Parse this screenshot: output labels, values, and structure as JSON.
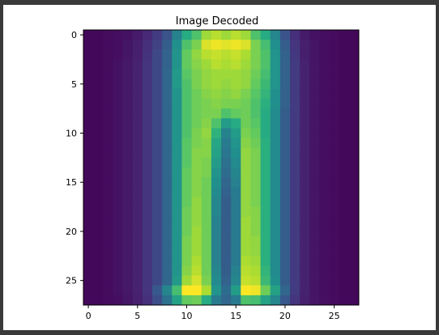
{
  "chart_data": {
    "type": "heatmap",
    "title": "Image Decoded",
    "xlabel": "",
    "ylabel": "",
    "rows": 28,
    "cols": 28,
    "colormap": "viridis",
    "vmin": 0,
    "vmax": 1,
    "xlim": [
      -0.5,
      27.5
    ],
    "ylim": [
      27.5,
      -0.5
    ],
    "xticks": [
      0,
      5,
      10,
      15,
      20,
      25
    ],
    "yticks": [
      0,
      5,
      10,
      15,
      20,
      25
    ],
    "grid": false,
    "values": [
      [
        0.02,
        0.02,
        0.03,
        0.04,
        0.05,
        0.08,
        0.12,
        0.18,
        0.26,
        0.44,
        0.62,
        0.72,
        0.86,
        0.9,
        0.86,
        0.9,
        0.86,
        0.72,
        0.62,
        0.46,
        0.26,
        0.14,
        0.08,
        0.05,
        0.04,
        0.03,
        0.02,
        0.02
      ],
      [
        0.02,
        0.02,
        0.03,
        0.04,
        0.06,
        0.09,
        0.14,
        0.2,
        0.3,
        0.5,
        0.72,
        0.8,
        0.95,
        0.98,
        0.96,
        0.98,
        0.95,
        0.8,
        0.7,
        0.5,
        0.3,
        0.16,
        0.09,
        0.06,
        0.04,
        0.03,
        0.02,
        0.02
      ],
      [
        0.02,
        0.02,
        0.03,
        0.04,
        0.06,
        0.09,
        0.15,
        0.22,
        0.32,
        0.52,
        0.76,
        0.84,
        0.9,
        0.92,
        0.9,
        0.92,
        0.88,
        0.8,
        0.72,
        0.52,
        0.32,
        0.17,
        0.09,
        0.06,
        0.04,
        0.03,
        0.02,
        0.02
      ],
      [
        0.02,
        0.02,
        0.03,
        0.05,
        0.07,
        0.1,
        0.16,
        0.22,
        0.32,
        0.52,
        0.76,
        0.82,
        0.86,
        0.9,
        0.88,
        0.9,
        0.86,
        0.8,
        0.72,
        0.52,
        0.32,
        0.18,
        0.1,
        0.06,
        0.04,
        0.03,
        0.02,
        0.02
      ],
      [
        0.02,
        0.02,
        0.03,
        0.05,
        0.07,
        0.1,
        0.16,
        0.22,
        0.34,
        0.54,
        0.74,
        0.8,
        0.84,
        0.86,
        0.86,
        0.86,
        0.84,
        0.78,
        0.7,
        0.52,
        0.32,
        0.18,
        0.1,
        0.06,
        0.04,
        0.03,
        0.02,
        0.02
      ],
      [
        0.02,
        0.02,
        0.03,
        0.05,
        0.07,
        0.1,
        0.16,
        0.22,
        0.34,
        0.54,
        0.72,
        0.8,
        0.84,
        0.86,
        0.84,
        0.86,
        0.84,
        0.76,
        0.68,
        0.52,
        0.32,
        0.18,
        0.1,
        0.06,
        0.04,
        0.03,
        0.02,
        0.02
      ],
      [
        0.02,
        0.02,
        0.03,
        0.05,
        0.07,
        0.1,
        0.16,
        0.22,
        0.34,
        0.52,
        0.72,
        0.78,
        0.82,
        0.84,
        0.82,
        0.84,
        0.8,
        0.74,
        0.66,
        0.5,
        0.32,
        0.18,
        0.1,
        0.06,
        0.04,
        0.03,
        0.02,
        0.02
      ],
      [
        0.02,
        0.02,
        0.03,
        0.05,
        0.07,
        0.1,
        0.16,
        0.22,
        0.34,
        0.52,
        0.72,
        0.78,
        0.8,
        0.82,
        0.8,
        0.8,
        0.78,
        0.72,
        0.64,
        0.5,
        0.32,
        0.18,
        0.1,
        0.06,
        0.04,
        0.03,
        0.02,
        0.02
      ],
      [
        0.02,
        0.02,
        0.03,
        0.05,
        0.07,
        0.1,
        0.16,
        0.22,
        0.34,
        0.52,
        0.72,
        0.78,
        0.8,
        0.8,
        0.72,
        0.76,
        0.78,
        0.72,
        0.62,
        0.48,
        0.3,
        0.18,
        0.1,
        0.06,
        0.04,
        0.03,
        0.02,
        0.02
      ],
      [
        0.02,
        0.02,
        0.03,
        0.05,
        0.07,
        0.1,
        0.16,
        0.22,
        0.34,
        0.52,
        0.72,
        0.78,
        0.82,
        0.72,
        0.55,
        0.62,
        0.78,
        0.74,
        0.62,
        0.48,
        0.3,
        0.18,
        0.1,
        0.06,
        0.04,
        0.03,
        0.02,
        0.02
      ],
      [
        0.02,
        0.02,
        0.03,
        0.05,
        0.07,
        0.1,
        0.16,
        0.22,
        0.34,
        0.52,
        0.72,
        0.8,
        0.84,
        0.65,
        0.45,
        0.55,
        0.8,
        0.76,
        0.62,
        0.48,
        0.3,
        0.18,
        0.1,
        0.06,
        0.04,
        0.03,
        0.02,
        0.02
      ],
      [
        0.02,
        0.02,
        0.03,
        0.05,
        0.07,
        0.1,
        0.16,
        0.22,
        0.34,
        0.52,
        0.74,
        0.8,
        0.82,
        0.6,
        0.42,
        0.52,
        0.82,
        0.78,
        0.64,
        0.48,
        0.3,
        0.18,
        0.1,
        0.06,
        0.04,
        0.03,
        0.02,
        0.02
      ],
      [
        0.02,
        0.02,
        0.03,
        0.05,
        0.07,
        0.1,
        0.16,
        0.22,
        0.34,
        0.52,
        0.74,
        0.82,
        0.82,
        0.58,
        0.4,
        0.5,
        0.84,
        0.8,
        0.64,
        0.48,
        0.3,
        0.18,
        0.1,
        0.06,
        0.04,
        0.03,
        0.02,
        0.02
      ],
      [
        0.02,
        0.02,
        0.03,
        0.05,
        0.07,
        0.1,
        0.16,
        0.22,
        0.34,
        0.52,
        0.74,
        0.82,
        0.8,
        0.55,
        0.38,
        0.48,
        0.84,
        0.8,
        0.64,
        0.48,
        0.3,
        0.18,
        0.1,
        0.06,
        0.04,
        0.03,
        0.02,
        0.02
      ],
      [
        0.02,
        0.02,
        0.03,
        0.05,
        0.07,
        0.1,
        0.16,
        0.22,
        0.34,
        0.52,
        0.76,
        0.82,
        0.8,
        0.52,
        0.36,
        0.46,
        0.84,
        0.8,
        0.64,
        0.48,
        0.3,
        0.18,
        0.1,
        0.06,
        0.04,
        0.03,
        0.02,
        0.02
      ],
      [
        0.02,
        0.02,
        0.03,
        0.05,
        0.07,
        0.1,
        0.16,
        0.22,
        0.34,
        0.52,
        0.76,
        0.82,
        0.78,
        0.5,
        0.34,
        0.44,
        0.84,
        0.8,
        0.64,
        0.48,
        0.3,
        0.18,
        0.1,
        0.06,
        0.04,
        0.03,
        0.02,
        0.02
      ],
      [
        0.02,
        0.02,
        0.03,
        0.05,
        0.07,
        0.1,
        0.16,
        0.22,
        0.34,
        0.52,
        0.76,
        0.82,
        0.78,
        0.48,
        0.32,
        0.42,
        0.84,
        0.8,
        0.64,
        0.48,
        0.3,
        0.18,
        0.1,
        0.06,
        0.04,
        0.03,
        0.02,
        0.02
      ],
      [
        0.02,
        0.02,
        0.03,
        0.05,
        0.07,
        0.1,
        0.16,
        0.22,
        0.34,
        0.52,
        0.76,
        0.84,
        0.78,
        0.46,
        0.3,
        0.42,
        0.84,
        0.8,
        0.64,
        0.48,
        0.3,
        0.18,
        0.1,
        0.06,
        0.04,
        0.03,
        0.02,
        0.02
      ],
      [
        0.02,
        0.02,
        0.03,
        0.05,
        0.07,
        0.1,
        0.16,
        0.22,
        0.34,
        0.52,
        0.78,
        0.84,
        0.78,
        0.46,
        0.3,
        0.42,
        0.84,
        0.82,
        0.64,
        0.48,
        0.3,
        0.18,
        0.1,
        0.06,
        0.04,
        0.03,
        0.02,
        0.02
      ],
      [
        0.02,
        0.02,
        0.03,
        0.05,
        0.07,
        0.1,
        0.16,
        0.22,
        0.34,
        0.52,
        0.78,
        0.84,
        0.78,
        0.44,
        0.3,
        0.42,
        0.86,
        0.82,
        0.64,
        0.48,
        0.3,
        0.18,
        0.1,
        0.06,
        0.04,
        0.03,
        0.02,
        0.02
      ],
      [
        0.02,
        0.02,
        0.03,
        0.05,
        0.07,
        0.1,
        0.16,
        0.22,
        0.34,
        0.52,
        0.78,
        0.86,
        0.78,
        0.44,
        0.3,
        0.42,
        0.86,
        0.82,
        0.64,
        0.48,
        0.3,
        0.18,
        0.1,
        0.06,
        0.04,
        0.03,
        0.02,
        0.02
      ],
      [
        0.02,
        0.02,
        0.03,
        0.05,
        0.07,
        0.1,
        0.16,
        0.22,
        0.34,
        0.52,
        0.8,
        0.86,
        0.78,
        0.44,
        0.3,
        0.42,
        0.86,
        0.84,
        0.64,
        0.48,
        0.3,
        0.18,
        0.1,
        0.06,
        0.04,
        0.03,
        0.02,
        0.02
      ],
      [
        0.02,
        0.02,
        0.03,
        0.05,
        0.07,
        0.1,
        0.16,
        0.22,
        0.34,
        0.52,
        0.8,
        0.86,
        0.78,
        0.44,
        0.3,
        0.42,
        0.86,
        0.84,
        0.64,
        0.48,
        0.3,
        0.18,
        0.1,
        0.06,
        0.04,
        0.03,
        0.02,
        0.02
      ],
      [
        0.02,
        0.02,
        0.03,
        0.05,
        0.07,
        0.1,
        0.16,
        0.22,
        0.34,
        0.52,
        0.8,
        0.88,
        0.78,
        0.44,
        0.3,
        0.42,
        0.88,
        0.86,
        0.64,
        0.48,
        0.3,
        0.18,
        0.1,
        0.06,
        0.04,
        0.03,
        0.02,
        0.02
      ],
      [
        0.02,
        0.02,
        0.03,
        0.05,
        0.07,
        0.1,
        0.16,
        0.22,
        0.34,
        0.52,
        0.82,
        0.9,
        0.78,
        0.46,
        0.3,
        0.44,
        0.9,
        0.88,
        0.66,
        0.48,
        0.3,
        0.18,
        0.1,
        0.06,
        0.04,
        0.03,
        0.02,
        0.02
      ],
      [
        0.02,
        0.02,
        0.03,
        0.05,
        0.07,
        0.1,
        0.16,
        0.22,
        0.34,
        0.54,
        0.86,
        0.94,
        0.8,
        0.48,
        0.32,
        0.46,
        0.92,
        0.9,
        0.68,
        0.5,
        0.3,
        0.18,
        0.1,
        0.06,
        0.04,
        0.03,
        0.02,
        0.02
      ],
      [
        0.02,
        0.02,
        0.03,
        0.05,
        0.07,
        0.1,
        0.16,
        0.28,
        0.46,
        0.7,
        1.0,
        1.0,
        0.88,
        0.52,
        0.36,
        0.56,
        1.0,
        0.98,
        0.78,
        0.58,
        0.34,
        0.18,
        0.1,
        0.06,
        0.04,
        0.03,
        0.02,
        0.02
      ],
      [
        0.02,
        0.02,
        0.03,
        0.04,
        0.06,
        0.09,
        0.14,
        0.24,
        0.38,
        0.58,
        0.76,
        0.78,
        0.62,
        0.42,
        0.34,
        0.42,
        0.72,
        0.7,
        0.58,
        0.46,
        0.28,
        0.16,
        0.09,
        0.06,
        0.04,
        0.03,
        0.02,
        0.02
      ]
    ]
  }
}
